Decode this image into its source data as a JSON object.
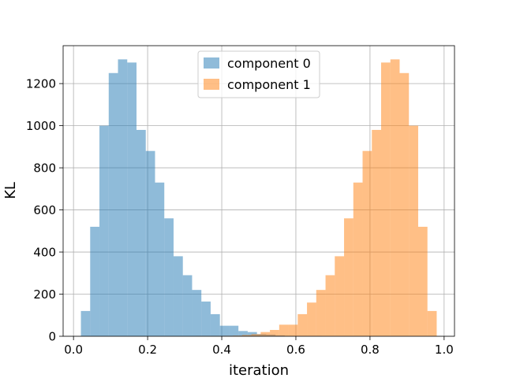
{
  "chart_data": {
    "type": "bar",
    "xlabel": "iteration",
    "ylabel": "KL",
    "xlim": [
      -0.028,
      1.028
    ],
    "ylim": [
      0,
      1380
    ],
    "bin_width": 0.025,
    "x_ticks": [
      0.0,
      0.2,
      0.4,
      0.6,
      0.8,
      1.0
    ],
    "x_tick_labels": [
      "0.0",
      "0.2",
      "0.4",
      "0.6",
      "0.8",
      "1.0"
    ],
    "y_ticks": [
      0,
      200,
      400,
      600,
      800,
      1000,
      1200
    ],
    "y_tick_labels": [
      "0",
      "200",
      "400",
      "600",
      "800",
      "1000",
      "1200"
    ],
    "grid": true,
    "legend_position": "top-center",
    "series": [
      {
        "name": "component 0",
        "color": "#1f77b4",
        "alpha": 0.5,
        "bin_starts": [
          0.02,
          0.045,
          0.07,
          0.095,
          0.12,
          0.145,
          0.17,
          0.195,
          0.22,
          0.245,
          0.27,
          0.295,
          0.32,
          0.345,
          0.37,
          0.395,
          0.42,
          0.445,
          0.47,
          0.495,
          0.52,
          0.545,
          0.57,
          0.595,
          0.62,
          0.645
        ],
        "values": [
          120,
          520,
          1000,
          1250,
          1315,
          1300,
          980,
          880,
          730,
          560,
          380,
          290,
          220,
          165,
          105,
          50,
          50,
          25,
          20,
          10,
          8,
          4,
          2,
          1,
          1,
          1
        ]
      },
      {
        "name": "component 1",
        "color": "#ff7f0e",
        "alpha": 0.5,
        "bin_starts": [
          0.33,
          0.355,
          0.38,
          0.405,
          0.43,
          0.455,
          0.48,
          0.505,
          0.53,
          0.555,
          0.58,
          0.605,
          0.63,
          0.655,
          0.68,
          0.705,
          0.73,
          0.755,
          0.78,
          0.805,
          0.83,
          0.855,
          0.88,
          0.905,
          0.93,
          0.955
        ],
        "values": [
          1,
          1,
          1,
          2,
          3,
          6,
          10,
          20,
          30,
          55,
          55,
          105,
          160,
          220,
          290,
          380,
          560,
          730,
          880,
          980,
          1300,
          1315,
          1250,
          1000,
          520,
          120
        ]
      }
    ]
  }
}
